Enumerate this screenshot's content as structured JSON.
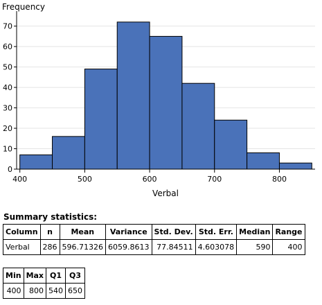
{
  "chart_data": {
    "type": "bar",
    "title": "",
    "xlabel": "Verbal",
    "ylabel": "Frequency",
    "bins": [
      {
        "x0": 400,
        "x1": 450,
        "count": 7
      },
      {
        "x0": 450,
        "x1": 500,
        "count": 16
      },
      {
        "x0": 500,
        "x1": 550,
        "count": 49
      },
      {
        "x0": 550,
        "x1": 600,
        "count": 72
      },
      {
        "x0": 600,
        "x1": 650,
        "count": 65
      },
      {
        "x0": 650,
        "x1": 700,
        "count": 42
      },
      {
        "x0": 700,
        "x1": 750,
        "count": 24
      },
      {
        "x0": 750,
        "x1": 800,
        "count": 8
      },
      {
        "x0": 800,
        "x1": 850,
        "count": 3
      }
    ],
    "xlim": [
      395,
      855
    ],
    "ylim": [
      0,
      76
    ],
    "xticks": [
      "400",
      "500",
      "600",
      "700",
      "800"
    ],
    "yticks": [
      "0",
      "10",
      "20",
      "30",
      "40",
      "50",
      "60",
      "70"
    ],
    "grid": true,
    "bar_color": "#4a72b9"
  },
  "summary": {
    "title": "Summary statistics:",
    "table1": {
      "headers": [
        "Column",
        "n",
        "Mean",
        "Variance",
        "Std. Dev.",
        "Std. Err.",
        "Median",
        "Range"
      ],
      "row": [
        "Verbal",
        "286",
        "596.71326",
        "6059.8613",
        "77.84511",
        "4.603078",
        "590",
        "400"
      ]
    },
    "table2": {
      "headers": [
        "Min",
        "Max",
        "Q1",
        "Q3"
      ],
      "row": [
        "400",
        "800",
        "540",
        "650"
      ]
    }
  }
}
